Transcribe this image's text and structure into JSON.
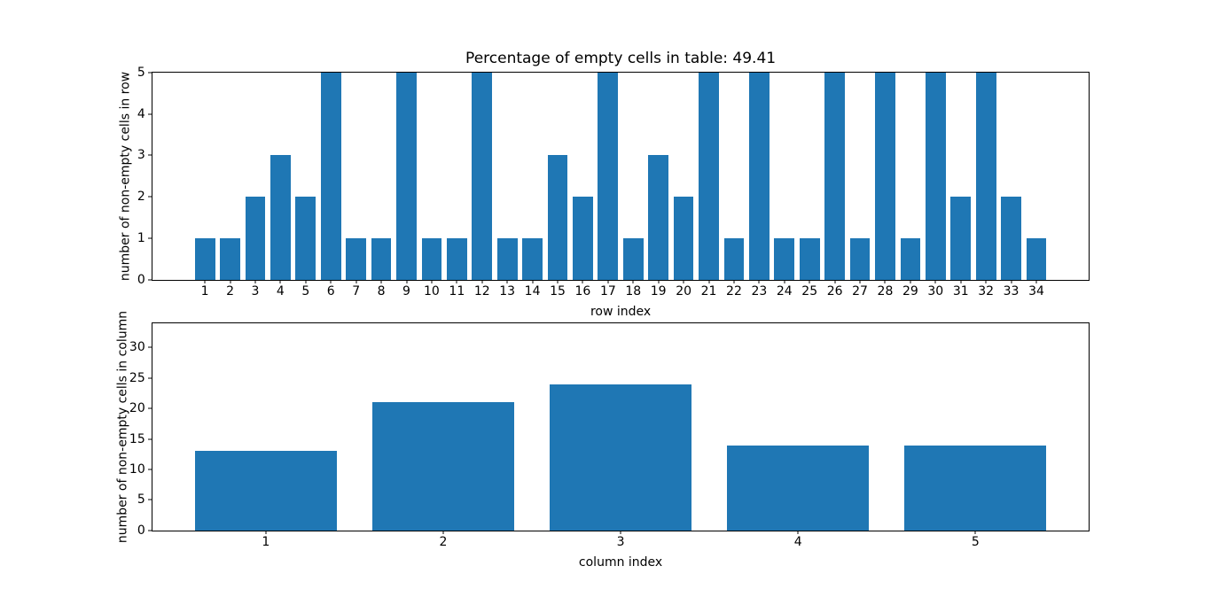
{
  "figure": {
    "background": "#ffffff",
    "bar_color": "#1f77b4",
    "axis_color": "#000000"
  },
  "chart_data": [
    {
      "type": "bar",
      "title": "Percentage of empty cells in table: 49.41",
      "xlabel": "row index",
      "ylabel": "number of non-empty cells in row",
      "categories": [
        1,
        2,
        3,
        4,
        5,
        6,
        7,
        8,
        9,
        10,
        11,
        12,
        13,
        14,
        15,
        16,
        17,
        18,
        19,
        20,
        21,
        22,
        23,
        24,
        25,
        26,
        27,
        28,
        29,
        30,
        31,
        32,
        33,
        34
      ],
      "values": [
        1,
        1,
        2,
        3,
        2,
        5,
        1,
        1,
        5,
        1,
        1,
        5,
        1,
        1,
        3,
        2,
        5,
        1,
        3,
        2,
        5,
        1,
        5,
        1,
        1,
        5,
        1,
        5,
        1,
        5,
        2,
        5,
        2,
        1
      ],
      "yticks": [
        0,
        1,
        2,
        3,
        4,
        5
      ],
      "ylim": [
        0,
        5
      ],
      "xlim": [
        -1.09,
        36.09
      ],
      "bar_width": 0.8,
      "grid": false,
      "legend": false,
      "bar_color": "#1f77b4"
    },
    {
      "type": "bar",
      "title": "",
      "xlabel": "column index",
      "ylabel": "number of non-empty cells in column",
      "categories": [
        1,
        2,
        3,
        4,
        5
      ],
      "values": [
        13,
        21,
        24,
        14,
        14
      ],
      "yticks": [
        0,
        5,
        10,
        15,
        20,
        25,
        30
      ],
      "ylim": [
        0,
        34
      ],
      "xlim": [
        0.36,
        5.64
      ],
      "bar_width": 0.8,
      "grid": false,
      "legend": false,
      "bar_color": "#1f77b4"
    }
  ]
}
